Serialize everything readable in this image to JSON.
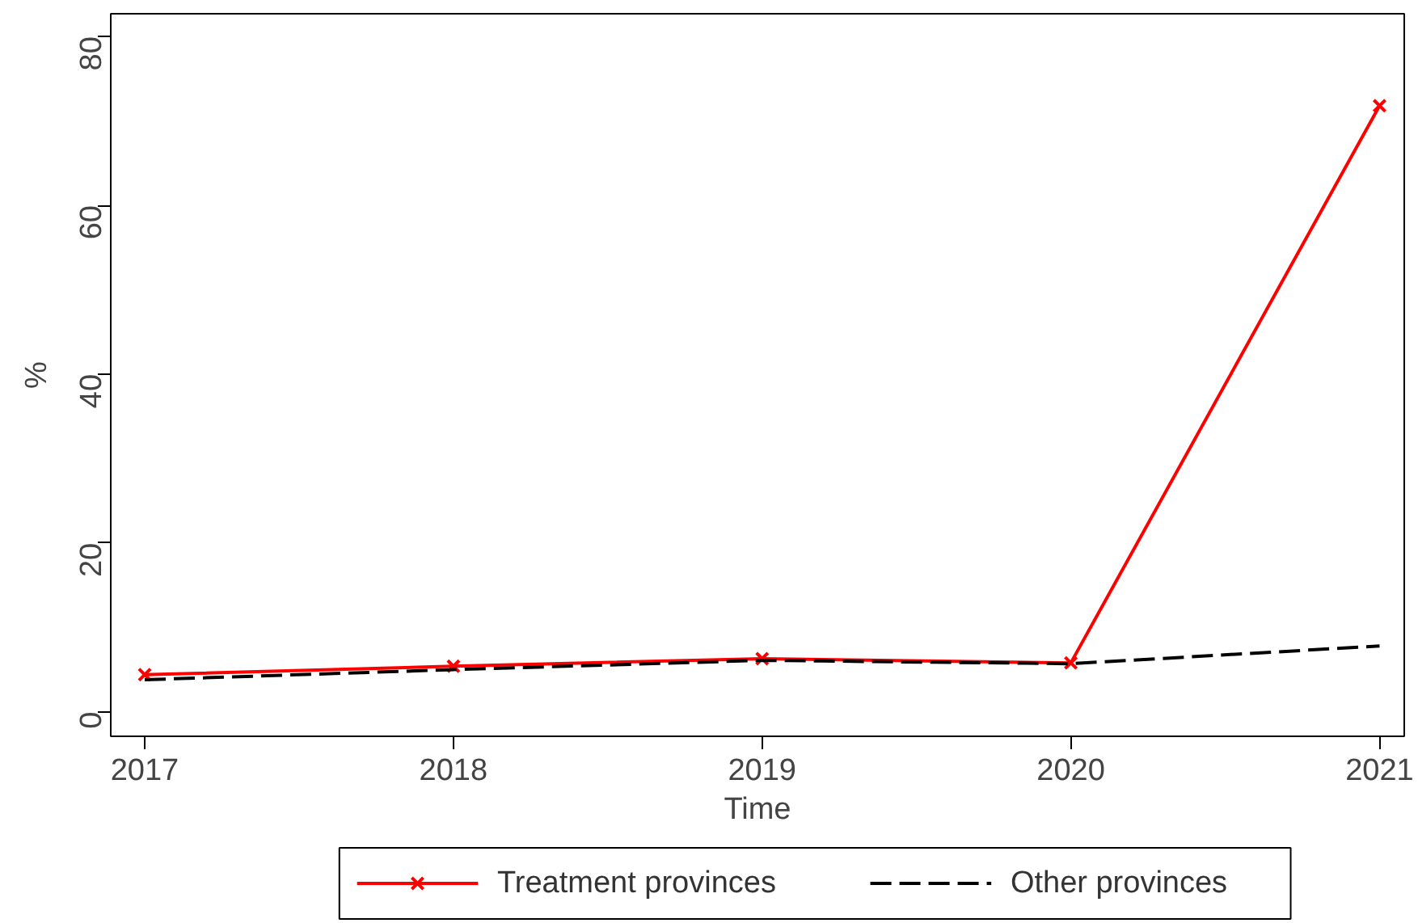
{
  "chart_data": {
    "type": "line",
    "xlabel": "Time",
    "ylabel": "%",
    "x": [
      2017,
      2018,
      2019,
      2020,
      2021
    ],
    "series": [
      {
        "name": "Treatment provinces",
        "color": "#ff0000",
        "values": [
          4.4,
          5.4,
          6.3,
          5.8,
          71.8
        ],
        "marker": "cross",
        "line_style": "solid"
      },
      {
        "name": "Other provinces",
        "color": "#000000",
        "values": [
          3.8,
          5.0,
          6.1,
          5.7,
          7.8
        ],
        "marker": "none",
        "line_style": "dashed"
      }
    ],
    "xlim": [
      2016.89,
      2021.08
    ],
    "xticks": [
      2017,
      2018,
      2019,
      2020,
      2021
    ],
    "ylim": [
      -2.9,
      82.7
    ],
    "yticks": [
      0,
      20,
      40,
      60,
      80
    ],
    "grid": false,
    "legend": "bottom"
  }
}
